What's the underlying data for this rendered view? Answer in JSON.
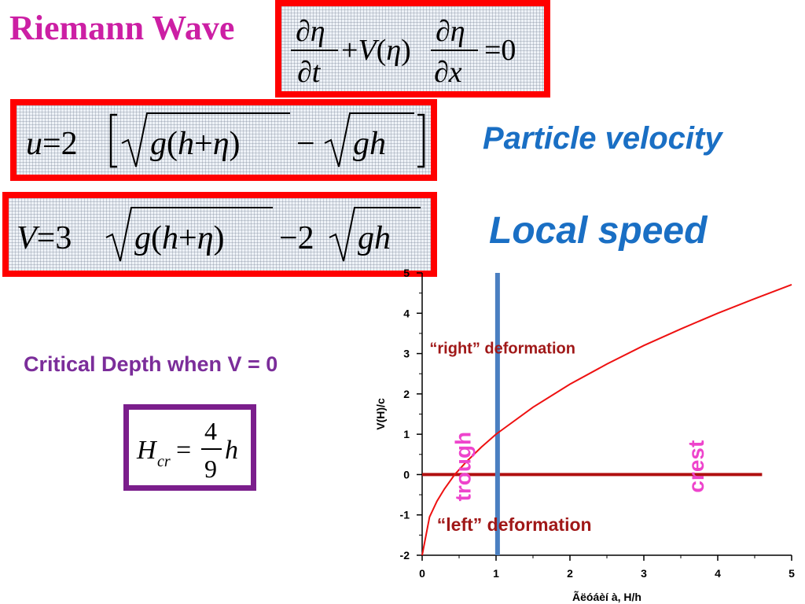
{
  "title": "Riemann Wave",
  "equations": {
    "wave": "∂η/∂t + V(η) ∂η/∂x = 0",
    "particle_velocity": "u = 2[√(g(h+η)) − √(gh)]",
    "local_speed": "V = 3√(g(h+η)) − 2√(gh)",
    "critical_depth": "H_cr = (4/9) h"
  },
  "labels": {
    "particle_velocity": "Particle velocity",
    "local_speed": "Local speed",
    "critical_depth": "Critical Depth when V = 0"
  },
  "colors": {
    "title": "#cc1fa4",
    "equation_border": "#ff0000",
    "label_blue": "#1a6fc4",
    "critical_label": "#7b2d9a",
    "curve": "#ee1111",
    "zero_line": "#b01010",
    "vertical_line": "#4a7fc1",
    "annotation_dark_red": "#a01818",
    "annotation_magenta": "#ee44cc"
  },
  "chart_data": {
    "type": "line",
    "xlabel": "Ãëóáèí à, H/h",
    "ylabel": "V(H)/c",
    "xlim": [
      0,
      5
    ],
    "ylim": [
      -2,
      5
    ],
    "x_ticks": [
      "0",
      "1",
      "2",
      "3",
      "4",
      "5"
    ],
    "y_ticks": [
      "-2",
      "-1",
      "0",
      "1",
      "2",
      "3",
      "4",
      "5"
    ],
    "grid": false,
    "series": [
      {
        "formula": "V(H)/c = 3*sqrt(H/h) - 2",
        "x": [
          0,
          0.1,
          0.2,
          0.3,
          0.44,
          0.6,
          0.8,
          1,
          1.5,
          2,
          2.5,
          3,
          3.5,
          4,
          4.5,
          5
        ],
        "y": [
          -2,
          -1.05,
          -0.66,
          -0.36,
          0,
          0.32,
          0.68,
          1,
          1.67,
          2.24,
          2.74,
          3.2,
          3.61,
          4,
          4.36,
          4.71
        ],
        "color": "#ee1111"
      }
    ],
    "reference_lines": [
      {
        "orientation": "horizontal",
        "y": 0,
        "x_range": [
          0,
          4.6
        ],
        "color": "#b01010"
      },
      {
        "orientation": "vertical",
        "x": 1.02,
        "y_range": [
          -2,
          5
        ],
        "color": "#4a7fc1"
      }
    ],
    "annotations": [
      {
        "text": "“right” deformation",
        "x": 0.1,
        "y": 3.0
      },
      {
        "text": "“left” deformation",
        "x": 0.2,
        "y": -1.4
      },
      {
        "text": "trough",
        "x": 0.55,
        "y": 0.2,
        "rotation": -90
      },
      {
        "text": "crest",
        "x": 3.7,
        "y": 0.2,
        "rotation": -90
      }
    ]
  }
}
